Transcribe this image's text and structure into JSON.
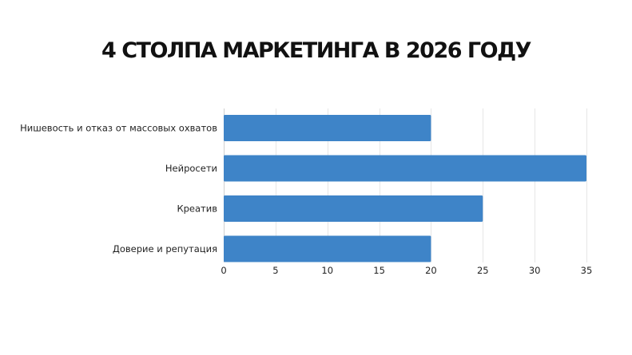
{
  "chart_data": {
    "type": "bar",
    "orientation": "horizontal",
    "title": "4 СТОЛПА МАРКЕТИНГА В 2026 ГОДУ",
    "categories": [
      "Нишевость и отказ от массовых охватов",
      "Нейросети",
      "Креатив",
      "Доверие и репутация"
    ],
    "values": [
      20,
      35,
      25,
      20
    ],
    "xlim": [
      0,
      35
    ],
    "xticks": [
      "0",
      "5",
      "10",
      "15",
      "20",
      "25",
      "30",
      "35"
    ],
    "grid": true,
    "bar_color": "#3e84c8",
    "xlabel": "",
    "ylabel": ""
  }
}
